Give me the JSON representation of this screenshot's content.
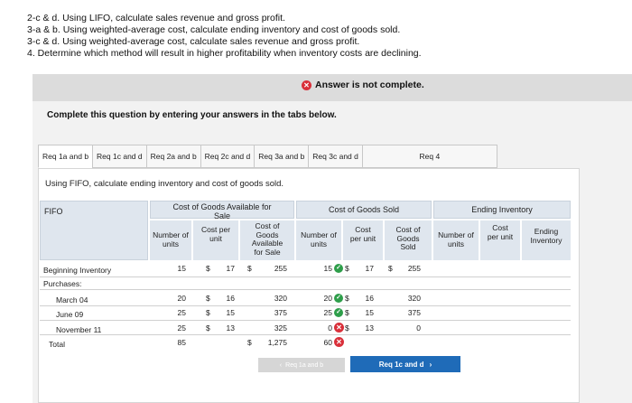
{
  "instructions": [
    "2-c & d. Using LIFO, calculate sales revenue and gross profit.",
    "3-a & b. Using weighted-average cost, calculate ending inventory and cost of goods sold.",
    "3-c & d. Using weighted-average cost, calculate sales revenue and gross profit.",
    "4. Determine which method will result in higher profitability when inventory costs are declining."
  ],
  "status": "Answer is not complete.",
  "complete_text": "Complete this question by entering your answers in the tabs below.",
  "tabs": [
    "Req 1a and b",
    "Req 1c and d",
    "Req 2a and b",
    "Req 2c and d",
    "Req 3a and b",
    "Req 3c and d",
    "Req 4"
  ],
  "prompt": "Using FIFO, calculate ending inventory and cost of goods sold.",
  "table": {
    "corner": "FIFO",
    "groups": {
      "available": "Cost of Goods Available for Sale",
      "sold": "Cost of Goods Sold",
      "ending": "Ending Inventory"
    },
    "headers": {
      "avail_units": "Number of units",
      "avail_cost": "Cost per unit",
      "avail_total": "Cost of Goods Available for Sale",
      "sold_units": "Number of units",
      "sold_cost": "Cost per unit",
      "sold_total": "Cost of Goods Sold",
      "end_units": "Number of units",
      "end_cost": "Cost per unit",
      "end_total": "Ending Inventory"
    },
    "rows": {
      "beginning": {
        "label": "Beginning Inventory",
        "units": "15",
        "cost": "17",
        "total": "255",
        "sold_units": "15",
        "sold_cost": "17",
        "sold_total": "255"
      },
      "purchases": {
        "label": "Purchases:"
      },
      "march": {
        "label": "March 04",
        "units": "20",
        "cost": "16",
        "total": "320",
        "sold_units": "20",
        "sold_cost": "16",
        "sold_total": "320"
      },
      "june": {
        "label": "June 09",
        "units": "25",
        "cost": "15",
        "total": "375",
        "sold_units": "25",
        "sold_cost": "15",
        "sold_total": "375"
      },
      "november": {
        "label": "November 11",
        "units": "25",
        "cost": "13",
        "total": "325",
        "sold_units": "0",
        "sold_cost": "13",
        "sold_total": "0"
      },
      "total": {
        "label": "Total",
        "units": "85",
        "total": "1,275",
        "sold_units": "60"
      }
    },
    "dollar": "$"
  },
  "nav": {
    "prev": "Req 1a and b",
    "next": "Req 1c and d"
  },
  "colors": {
    "error": "#d9303a",
    "ok": "#2e9e4a",
    "primary": "#1f6bb8"
  }
}
